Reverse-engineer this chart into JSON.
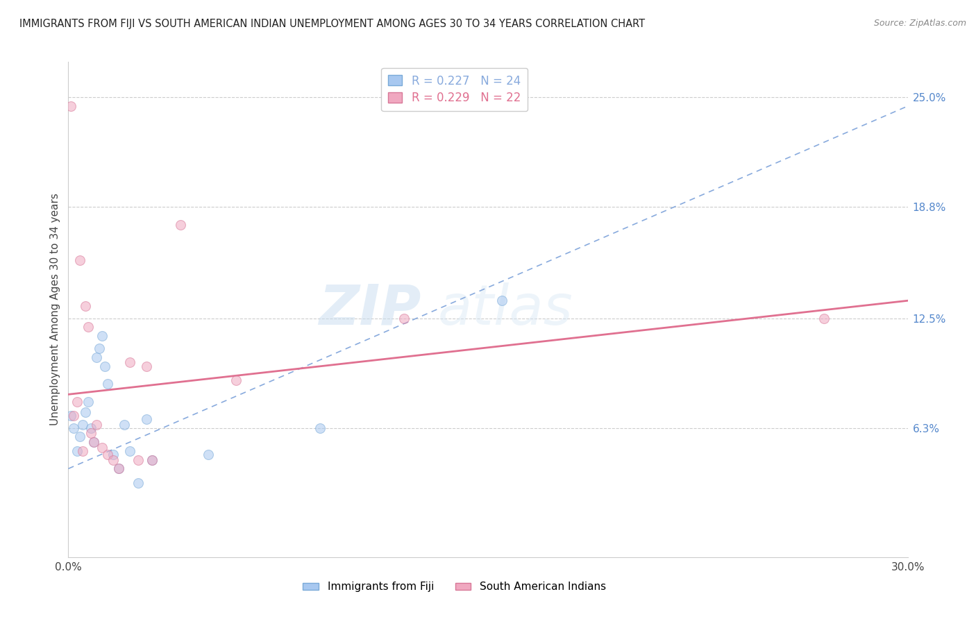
{
  "title": "IMMIGRANTS FROM FIJI VS SOUTH AMERICAN INDIAN UNEMPLOYMENT AMONG AGES 30 TO 34 YEARS CORRELATION CHART",
  "source": "Source: ZipAtlas.com",
  "ylabel": "Unemployment Among Ages 30 to 34 years",
  "xlim": [
    0.0,
    0.3
  ],
  "ylim": [
    -0.01,
    0.27
  ],
  "xtick_positions": [
    0.0,
    0.05,
    0.1,
    0.15,
    0.2,
    0.25,
    0.3
  ],
  "xtick_labels": [
    "0.0%",
    "",
    "",
    "",
    "",
    "",
    "30.0%"
  ],
  "right_ytick_labels": [
    "6.3%",
    "12.5%",
    "18.8%",
    "25.0%"
  ],
  "right_ytick_values": [
    0.063,
    0.125,
    0.188,
    0.25
  ],
  "grid_color": "#cccccc",
  "fiji_color": "#a8c8f0",
  "fiji_edge_color": "#7aaad8",
  "sai_color": "#f0a8c0",
  "sai_edge_color": "#d87898",
  "fiji_trend_color": "#88aadd",
  "sai_trend_color": "#e07090",
  "legend_fiji_text": "R = 0.227   N = 24",
  "legend_sai_text": "R = 0.229   N = 22",
  "fiji_x": [
    0.001,
    0.002,
    0.003,
    0.004,
    0.005,
    0.006,
    0.007,
    0.008,
    0.009,
    0.01,
    0.011,
    0.012,
    0.013,
    0.014,
    0.016,
    0.018,
    0.02,
    0.022,
    0.025,
    0.028,
    0.03,
    0.05,
    0.09,
    0.155
  ],
  "fiji_y": [
    0.07,
    0.063,
    0.05,
    0.058,
    0.065,
    0.072,
    0.078,
    0.063,
    0.055,
    0.103,
    0.108,
    0.115,
    0.098,
    0.088,
    0.048,
    0.04,
    0.065,
    0.05,
    0.032,
    0.068,
    0.045,
    0.048,
    0.063,
    0.135
  ],
  "sai_x": [
    0.001,
    0.002,
    0.003,
    0.004,
    0.005,
    0.006,
    0.007,
    0.008,
    0.009,
    0.01,
    0.012,
    0.014,
    0.016,
    0.018,
    0.022,
    0.025,
    0.028,
    0.03,
    0.04,
    0.06,
    0.12,
    0.27
  ],
  "sai_y": [
    0.245,
    0.07,
    0.078,
    0.158,
    0.05,
    0.132,
    0.12,
    0.06,
    0.055,
    0.065,
    0.052,
    0.048,
    0.045,
    0.04,
    0.1,
    0.045,
    0.098,
    0.045,
    0.178,
    0.09,
    0.125,
    0.125
  ],
  "fiji_trend": [
    0.0,
    0.3,
    0.04,
    0.245
  ],
  "sai_trend": [
    0.0,
    0.3,
    0.082,
    0.135
  ],
  "bg_color": "#ffffff",
  "dot_size": 100,
  "dot_alpha": 0.55
}
